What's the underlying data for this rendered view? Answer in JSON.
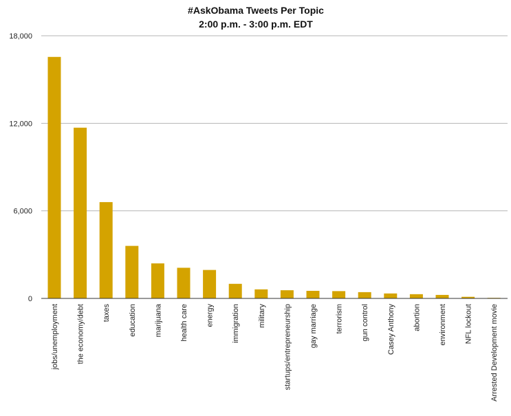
{
  "chart_data": {
    "type": "bar",
    "title": "#AskObama Tweets Per Topic",
    "subtitle": "2:00 p.m. - 3:00 p.m. EDT",
    "xlabel": "",
    "ylabel": "",
    "ylim": [
      0,
      18000
    ],
    "yticks": [
      0,
      6000,
      12000,
      18000
    ],
    "ytick_labels": [
      "0",
      "6,000",
      "12,000",
      "18,000"
    ],
    "grid": true,
    "bar_color": "#d4a300",
    "categories": [
      "jobs/unemployment",
      "the economy/debt",
      "taxes",
      "education",
      "marijuana",
      "health care",
      "energy",
      "immigration",
      "military",
      "startups/entrepreneurship",
      "gay marriage",
      "terrorism",
      "gun control",
      "Casey Anthony",
      "abortion",
      "environment",
      "NFL lockout",
      "Arrested Development movie"
    ],
    "values": [
      16550,
      11700,
      6600,
      3600,
      2400,
      2100,
      1950,
      1000,
      620,
      560,
      520,
      500,
      430,
      340,
      290,
      240,
      110,
      40
    ]
  }
}
